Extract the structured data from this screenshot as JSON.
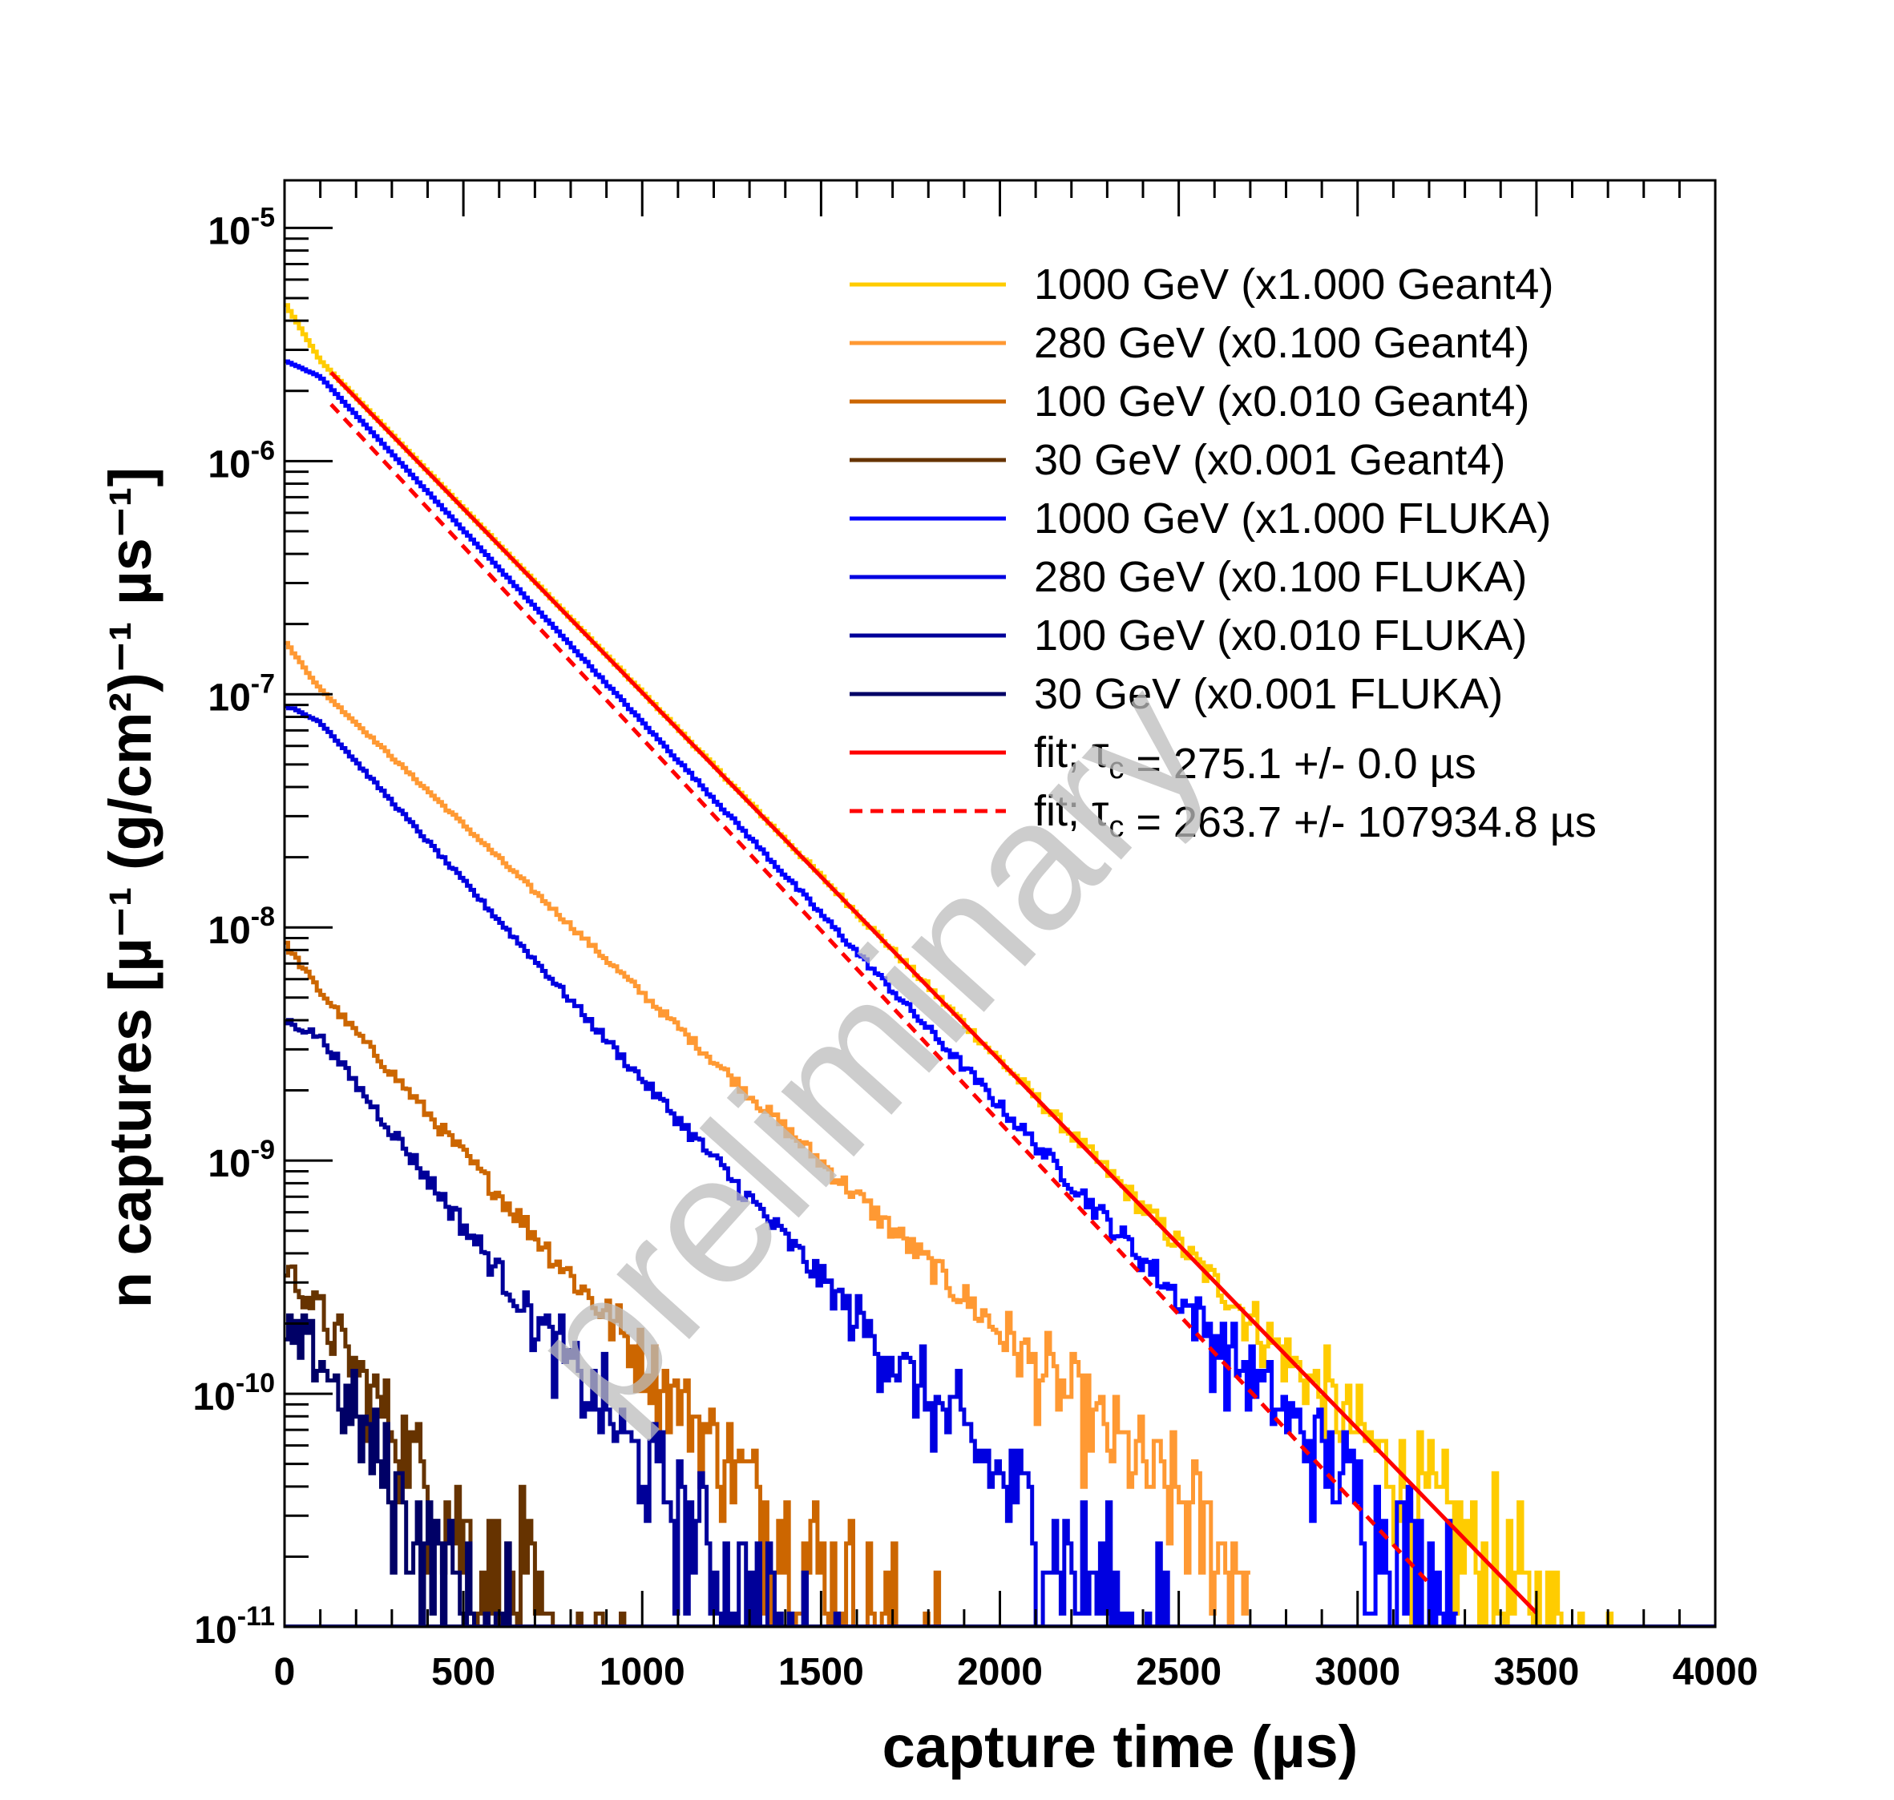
{
  "chart_data": {
    "type": "line",
    "style": "step histogram, semi-log",
    "xlabel": "capture time (µs)",
    "ylabel": "n captures [µ⁻¹ (g/cm²)⁻¹ µs⁻¹]",
    "xlim": [
      0,
      4000
    ],
    "ylim": [
      1e-11,
      1.6e-05
    ],
    "yscale": "log",
    "x_ticks": [
      "0",
      "500",
      "1000",
      "1500",
      "2000",
      "2500",
      "3000",
      "3500",
      "4000"
    ],
    "y_ticks": [
      {
        "base": "10",
        "exp": "-5"
      },
      {
        "base": "10",
        "exp": "-6"
      },
      {
        "base": "10",
        "exp": "-7"
      },
      {
        "base": "10",
        "exp": "-8"
      },
      {
        "base": "10",
        "exp": "-9"
      },
      {
        "base": "10",
        "exp": "-10"
      },
      {
        "base": "10",
        "exp": "-11"
      }
    ],
    "grid": false,
    "legend_position": "top-right",
    "watermark": "preliminary",
    "series": [
      {
        "name": "1000 GeV (x1.000 Geant4)",
        "color": "#ffcc00",
        "kind": "histogram",
        "y0": 4.8e-06,
        "y_at_100": 2.7e-06,
        "tau_us": 275,
        "x_end": 3720
      },
      {
        "name": "280 GeV (x0.100 Geant4)",
        "color": "#ff9933",
        "kind": "histogram",
        "y0": 1.7e-07,
        "y_at_100": 1.05e-07,
        "tau_us": 300,
        "x_end": 2700
      },
      {
        "name": "100 GeV (x0.010 Geant4)",
        "color": "#cc6600",
        "kind": "histogram",
        "y0": 8.6e-09,
        "y_at_100": 5.3e-09,
        "tau_us": 250,
        "x_end": 1900
      },
      {
        "name": "30 GeV (x0.001 Geant4)",
        "color": "#663300",
        "kind": "histogram",
        "y0": 3.6e-10,
        "y_at_100": 2.2e-10,
        "tau_us": 190,
        "x_end": 1000
      },
      {
        "name": "1000 GeV (x1.000 FLUKA)",
        "color": "#0000ff",
        "kind": "histogram",
        "y0": 2.7e-06,
        "y_at_100": 2.3e-06,
        "tau_us": 264,
        "x_end": 3280
      },
      {
        "name": "280 GeV (x0.100 FLUKA)",
        "color": "#0000e0",
        "kind": "histogram",
        "y0": 9e-08,
        "y_at_100": 7.6e-08,
        "tau_us": 255,
        "x_end": 2500
      },
      {
        "name": "100 GeV (x0.010 FLUKA)",
        "color": "#000099",
        "kind": "histogram",
        "y0": 4e-09,
        "y_at_100": 3.4e-09,
        "tau_us": 215,
        "x_end": 1750
      },
      {
        "name": "30 GeV (x0.001 FLUKA)",
        "color": "#000066",
        "kind": "histogram",
        "y0": 1.7e-10,
        "y_at_100": 1.45e-10,
        "tau_us": 160,
        "x_end": 800
      }
    ],
    "fits": [
      {
        "name": "fit; τ",
        "sub": "c",
        "rest": " = 275.1 +/- 0.0 µs",
        "color": "#ff0000",
        "dash": false,
        "tau_us": 275.1,
        "x_start": 130,
        "x_end": 3500,
        "y_start": 2.4e-06
      },
      {
        "name": "fit; τ",
        "sub": "c",
        "rest": " = 263.7 +/- 107934.8 µs",
        "color": "#ff0000",
        "dash": true,
        "tau_us": 263.7,
        "x_start": 130,
        "x_end": 3200,
        "y_start": 1.75e-06
      }
    ]
  }
}
